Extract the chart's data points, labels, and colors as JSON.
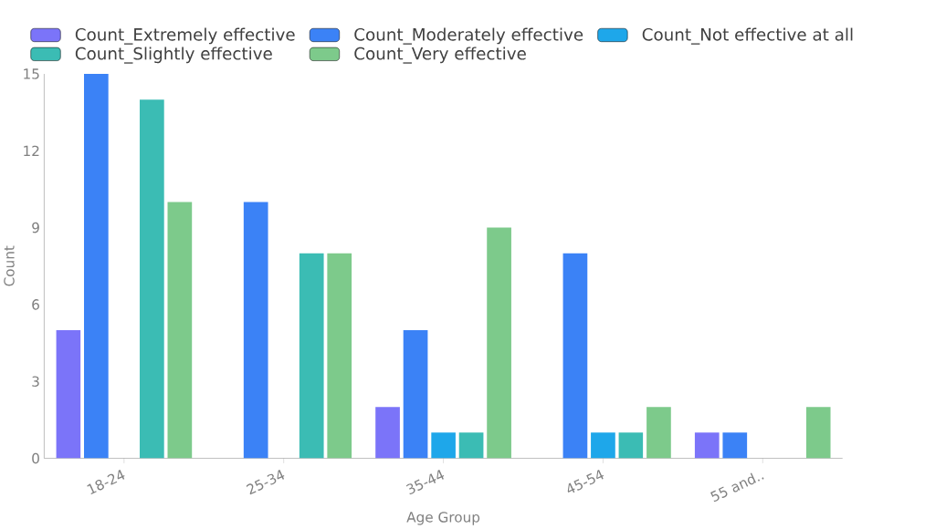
{
  "chart_data": {
    "type": "bar",
    "xlabel": "Age Group",
    "ylabel": "Count",
    "categories": [
      "18-24",
      "25-34",
      "35-44",
      "45-54",
      "55 and.."
    ],
    "series": [
      {
        "name": "Count_Extremely effective",
        "color": "#7b74f9",
        "values": [
          5,
          null,
          2,
          null,
          1
        ]
      },
      {
        "name": "Count_Moderately effective",
        "color": "#3b82f6",
        "values": [
          15,
          10,
          5,
          8,
          1
        ]
      },
      {
        "name": "Count_Not effective at all",
        "color": "#1ea7ea",
        "values": [
          null,
          null,
          1,
          1,
          null
        ]
      },
      {
        "name": "Count_Slightly effective",
        "color": "#3bbcb4",
        "values": [
          14,
          8,
          1,
          1,
          null
        ]
      },
      {
        "name": "Count_Very effective",
        "color": "#7dca8b",
        "values": [
          10,
          8,
          9,
          2,
          2
        ]
      }
    ],
    "ylim": [
      0,
      15
    ],
    "yticks": [
      0,
      3,
      6,
      9,
      12,
      15
    ],
    "legend": "top"
  }
}
